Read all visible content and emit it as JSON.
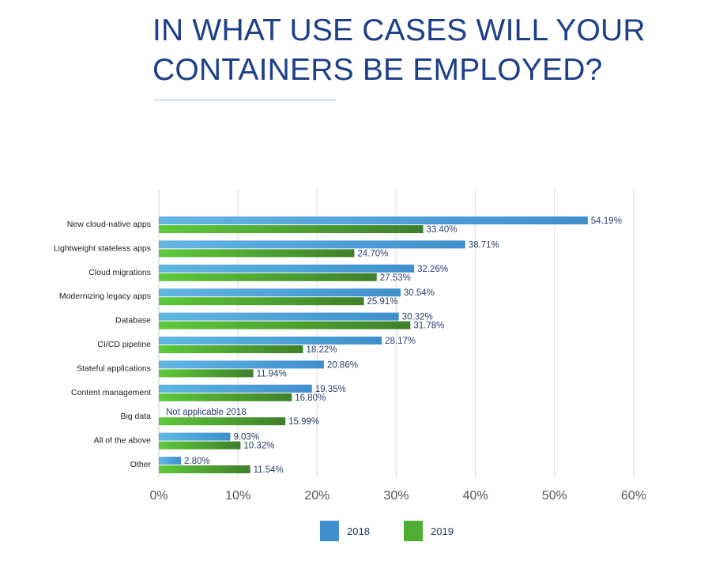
{
  "header": {
    "title_line1": "IN WHAT USE CASES WILL YOUR",
    "title_line2": "CONTAINERS BE EMPLOYED?"
  },
  "colors": {
    "series_2018": "#3f8fcd",
    "series_2019": "#4fae32",
    "value_label": "#2a3f6e",
    "category_label": "#222222",
    "tick_label": "#555555",
    "gridline": "#e4e4e4"
  },
  "chart_data": {
    "type": "bar",
    "orientation": "horizontal",
    "title": "IN WHAT USE CASES WILL YOUR CONTAINERS BE EMPLOYED?",
    "xlabel": "",
    "ylabel": "",
    "xlim": [
      0,
      60
    ],
    "x_ticks": [
      "0%",
      "10%",
      "20%",
      "30%",
      "40%",
      "50%",
      "60%"
    ],
    "grid": true,
    "legend_position": "bottom",
    "categories": [
      "New cloud-native apps",
      "Lightweight stateless apps",
      "Cloud migrations",
      "Modernizing legacy apps",
      "Database",
      "CI/CD pipeline",
      "Stateful applications",
      "Content management",
      "Big data",
      "All of the above",
      "Other"
    ],
    "series": [
      {
        "name": "2018",
        "values": [
          54.19,
          38.71,
          32.26,
          30.54,
          30.32,
          28.17,
          20.86,
          19.35,
          null,
          9.03,
          2.8
        ],
        "labels": [
          "54.19%",
          "38.71%",
          "32.26%",
          "30.54%",
          "30.32%",
          "28.17%",
          "20.86%",
          "19.35%",
          "Not applicable 2018",
          "9.03%",
          "2.80%"
        ]
      },
      {
        "name": "2019",
        "values": [
          33.4,
          24.7,
          27.53,
          25.91,
          31.78,
          18.22,
          11.94,
          16.8,
          15.99,
          10.32,
          11.54
        ],
        "labels": [
          "33.40%",
          "24.70%",
          "27.53%",
          "25.91%",
          "31.78%",
          "18.22%",
          "11.94%",
          "16.80%",
          "15.99%",
          "10.32%",
          "11.54%"
        ]
      }
    ]
  }
}
